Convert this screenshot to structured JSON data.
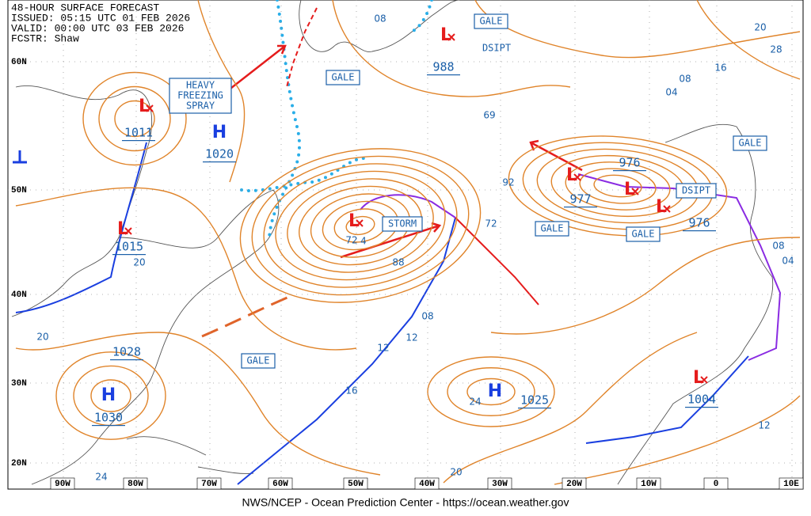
{
  "header": {
    "lines": [
      "48-HOUR SURFACE FORECAST",
      "ISSUED: 05:15 UTC 01 FEB 2026",
      "VALID:  00:00 UTC 03 FEB 2026",
      "FCSTR:  Shaw"
    ]
  },
  "lat_labels": [
    "60N",
    "50N",
    "40N",
    "30N",
    "20N"
  ],
  "lon_labels": [
    "90W",
    "80W",
    "70W",
    "60W",
    "50W",
    "40W",
    "30W",
    "20W",
    "10W",
    "0",
    "10E"
  ],
  "centers": [
    {
      "symbol": "L",
      "pressure": "1011"
    },
    {
      "symbol": "H",
      "pressure": "1020"
    },
    {
      "symbol": "L",
      "pressure": "1015"
    },
    {
      "pressure": "1028"
    },
    {
      "symbol": "H",
      "pressure": "1030"
    },
    {
      "symbol": "H",
      "pressure": "1025"
    },
    {
      "symbol": "L",
      "pressure": "988"
    },
    {
      "symbol": "L",
      "pressure": "977"
    },
    {
      "symbol": "L",
      "pressure": "976"
    },
    {
      "symbol": "L",
      "pressure": "976"
    },
    {
      "symbol": "L",
      "pressure": "1004"
    },
    {
      "symbol": "L"
    }
  ],
  "boxes": [
    "GALE",
    "GALE",
    "GALE",
    "GALE",
    "GALE",
    "GALE",
    "STORM",
    "DSIPT"
  ],
  "plain_labels": [
    "DSIPT"
  ],
  "spray_box": [
    "HEAVY",
    "FREEZING",
    "SPRAY"
  ],
  "isobar_labels": [
    "08",
    "69",
    "92",
    "72",
    "72",
    "4",
    "88",
    "08",
    "12",
    "12",
    "16",
    "20",
    "20",
    "24",
    "24",
    "20",
    "16",
    "08",
    "04",
    "20",
    "28",
    "08",
    "04",
    "12"
  ],
  "footer": "NWS/NCEP - Ocean Prediction Center - https://ocean.weather.gov"
}
